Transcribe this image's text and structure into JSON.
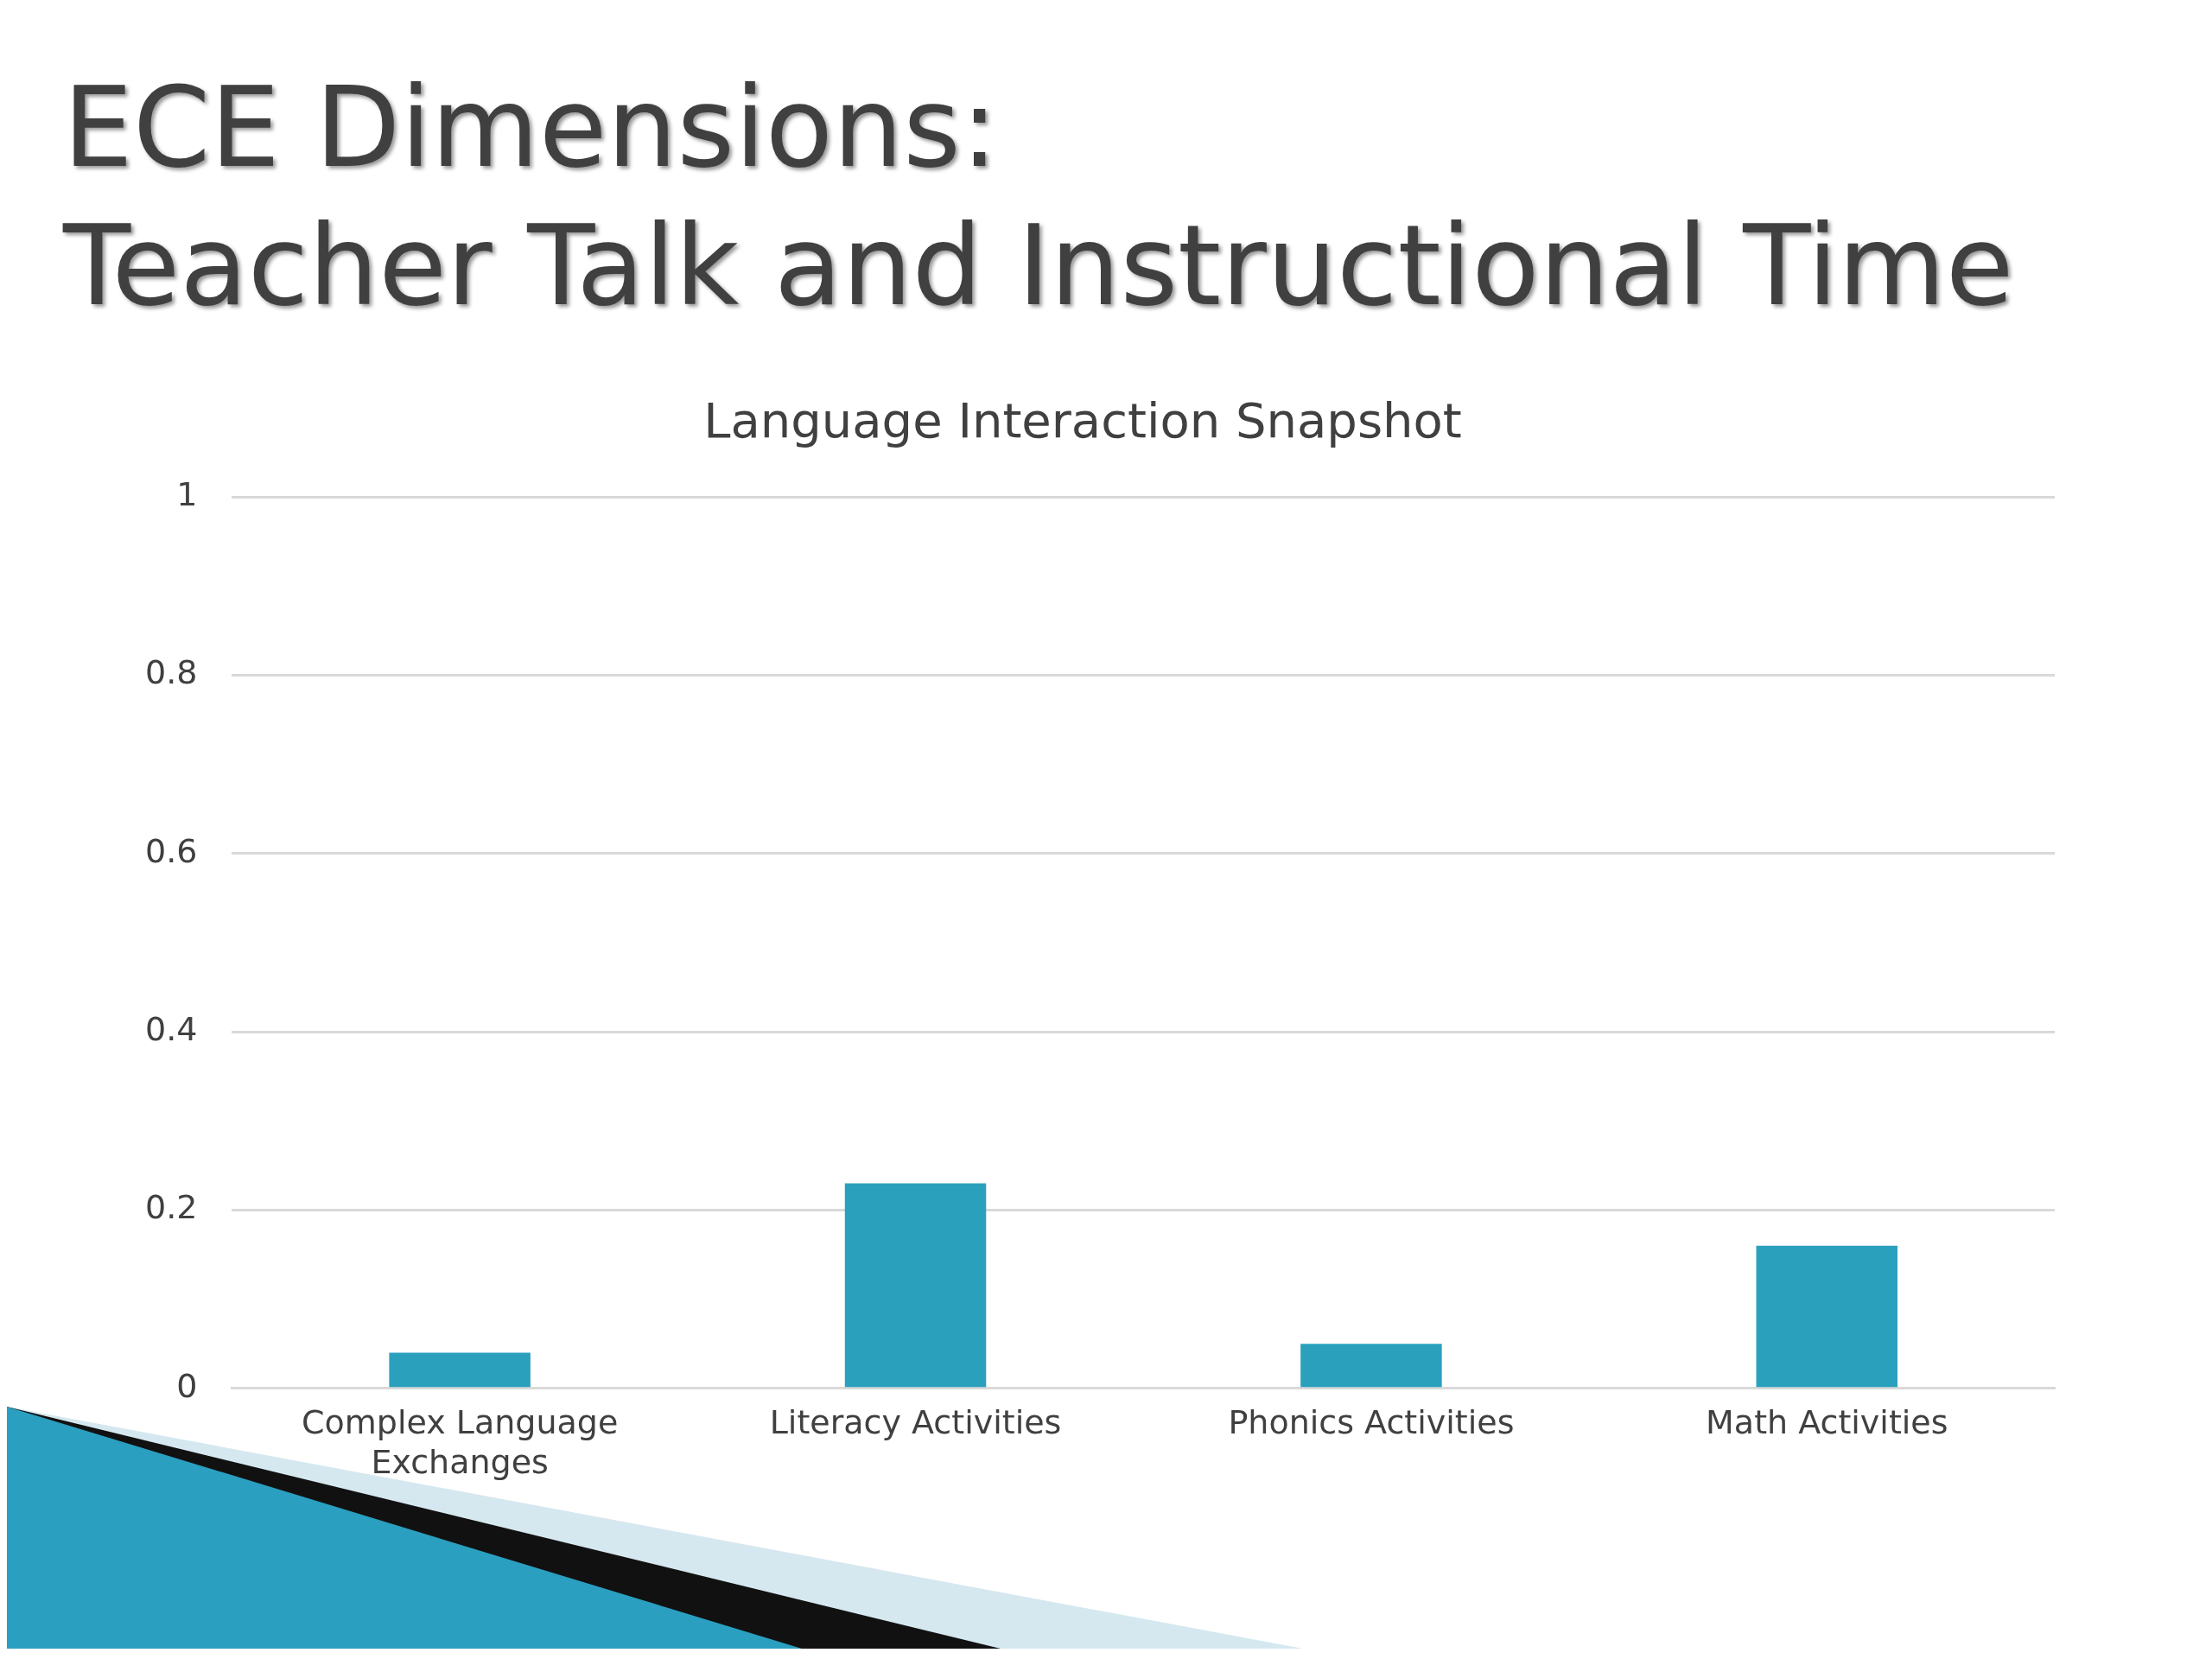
{
  "chart_data": {
    "type": "bar",
    "title": "ECE Dimensions:\nTeacher Talk and Instructional Time",
    "subtitle": "Language Interaction Snapshot",
    "categories": [
      "Complex Language Exchanges",
      "Literacy Activities",
      "Phonics Activities",
      "Math Activities"
    ],
    "values": [
      0.04,
      0.23,
      0.05,
      0.16
    ],
    "color": "#2aa0bd",
    "ylim": [
      0,
      1
    ],
    "yticks": [
      0,
      0.2,
      0.4,
      0.6,
      0.8,
      1
    ],
    "grid": "y",
    "legend": false
  }
}
